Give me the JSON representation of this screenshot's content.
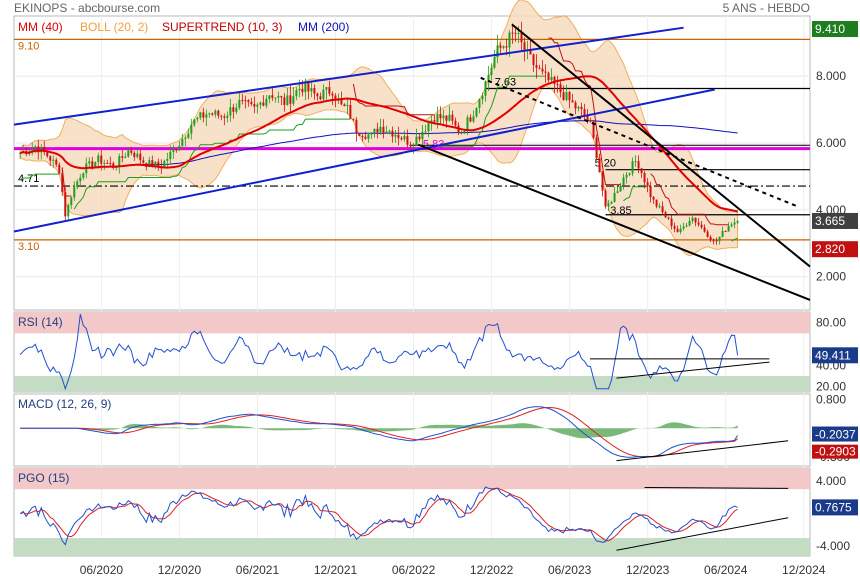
{
  "header": {
    "symbol": "EKINOPS",
    "source": "abcbourse.com",
    "period": "5 ANS - HEBDO"
  },
  "legend": [
    {
      "label": "MM (40)",
      "color": "#e00000"
    },
    {
      "label": "BOLL (20, 2)",
      "color": "#f0a040"
    },
    {
      "label": "SUPERTREND (10, 3)",
      "color": "#c00000"
    },
    {
      "label": "MM (200)",
      "color": "#1010c0"
    }
  ],
  "chart_data": [
    {
      "type": "candlestick",
      "panel": "price",
      "y_ticks": [
        "8.000",
        "6.000",
        "4.000",
        "2.000"
      ],
      "ylim": [
        1.0,
        9.8
      ],
      "x_ticks": [
        "06/2020",
        "12/2020",
        "06/2021",
        "12/2021",
        "06/2022",
        "12/2022",
        "06/2023",
        "12/2023",
        "06/2024",
        "12/2024"
      ],
      "x_tick_years": [
        2020.42,
        2020.92,
        2021.42,
        2021.92,
        2022.42,
        2022.92,
        2023.42,
        2023.92,
        2024.42,
        2024.92
      ],
      "xlim": [
        2019.86,
        2024.96
      ],
      "close_series": [
        [
          2019.9,
          5.7
        ],
        [
          2020.0,
          5.9
        ],
        [
          2020.08,
          5.6
        ],
        [
          2020.15,
          5.2
        ],
        [
          2020.19,
          3.8
        ],
        [
          2020.23,
          4.5
        ],
        [
          2020.3,
          5.2
        ],
        [
          2020.4,
          5.5
        ],
        [
          2020.5,
          5.3
        ],
        [
          2020.6,
          5.8
        ],
        [
          2020.7,
          5.4
        ],
        [
          2020.8,
          5.3
        ],
        [
          2020.92,
          6.0
        ],
        [
          2021.0,
          6.6
        ],
        [
          2021.1,
          6.9
        ],
        [
          2021.2,
          6.8
        ],
        [
          2021.3,
          7.2
        ],
        [
          2021.4,
          7.0
        ],
        [
          2021.5,
          7.5
        ],
        [
          2021.6,
          7.2
        ],
        [
          2021.7,
          7.7
        ],
        [
          2021.8,
          7.4
        ],
        [
          2021.9,
          7.6
        ],
        [
          2021.95,
          7.1
        ],
        [
          2022.0,
          7.0
        ],
        [
          2022.05,
          6.4
        ],
        [
          2022.15,
          6.2
        ],
        [
          2022.2,
          6.5
        ],
        [
          2022.3,
          6.3
        ],
        [
          2022.4,
          6.0
        ],
        [
          2022.45,
          6.2
        ],
        [
          2022.55,
          6.8
        ],
        [
          2022.65,
          6.7
        ],
        [
          2022.72,
          6.3
        ],
        [
          2022.8,
          6.9
        ],
        [
          2022.88,
          7.8
        ],
        [
          2022.95,
          8.7
        ],
        [
          2023.03,
          9.1
        ],
        [
          2023.07,
          9.3
        ],
        [
          2023.15,
          8.6
        ],
        [
          2023.25,
          8.0
        ],
        [
          2023.35,
          7.6
        ],
        [
          2023.45,
          7.1
        ],
        [
          2023.5,
          6.9
        ],
        [
          2023.55,
          6.6
        ],
        [
          2023.6,
          5.5
        ],
        [
          2023.65,
          4.0
        ],
        [
          2023.7,
          4.4
        ],
        [
          2023.77,
          5.0
        ],
        [
          2023.85,
          5.5
        ],
        [
          2023.9,
          4.9
        ],
        [
          2023.95,
          4.3
        ],
        [
          2024.05,
          3.7
        ],
        [
          2024.12,
          3.3
        ],
        [
          2024.2,
          3.8
        ],
        [
          2024.28,
          3.4
        ],
        [
          2024.35,
          3.0
        ],
        [
          2024.4,
          3.3
        ],
        [
          2024.45,
          3.6
        ],
        [
          2024.5,
          3.665
        ]
      ],
      "horizontal_levels": [
        {
          "label": "9.10",
          "value": 9.1,
          "color": "#c86400"
        },
        {
          "label": "3.10",
          "value": 3.1,
          "color": "#c86400"
        },
        {
          "label": "5.83",
          "value": 5.83,
          "color": "#e000e0"
        },
        {
          "label": "4.71",
          "value": 4.71,
          "color": "#000000"
        },
        {
          "label": "7.63",
          "value": 7.63,
          "color": "#000000"
        },
        {
          "label": "5.20",
          "value": 5.2,
          "color": "#000000"
        },
        {
          "label": "3.85",
          "value": 3.85,
          "color": "#000000"
        }
      ],
      "price_badges": [
        {
          "label": "9.410",
          "value": 9.41,
          "color": "#1e7d1e"
        },
        {
          "label": "3.665",
          "value": 3.665,
          "color": "#404040"
        },
        {
          "label": "2.820",
          "value": 2.82,
          "color": "#c01010"
        }
      ]
    },
    {
      "type": "line",
      "panel": "rsi",
      "label": "RSI (14)",
      "y_ticks": [
        "80.00",
        "40.00",
        "20.00"
      ],
      "ylim": [
        15,
        90
      ],
      "last_value": "49.411",
      "overbought": 70,
      "oversold": 30
    },
    {
      "type": "line",
      "panel": "macd",
      "label": "MACD (12, 26, 9)",
      "y_ticks": [
        "0.800",
        "-0.800"
      ],
      "ylim": [
        -1.05,
        0.95
      ],
      "macd_value": "-0.2037",
      "signal_value": "-0.2903"
    },
    {
      "type": "line",
      "panel": "pgo",
      "label": "PGO (15)",
      "y_ticks": [
        "4.000",
        "-4.000"
      ],
      "ylim": [
        -5.2,
        5.6
      ],
      "last_value": "0.7675"
    }
  ]
}
